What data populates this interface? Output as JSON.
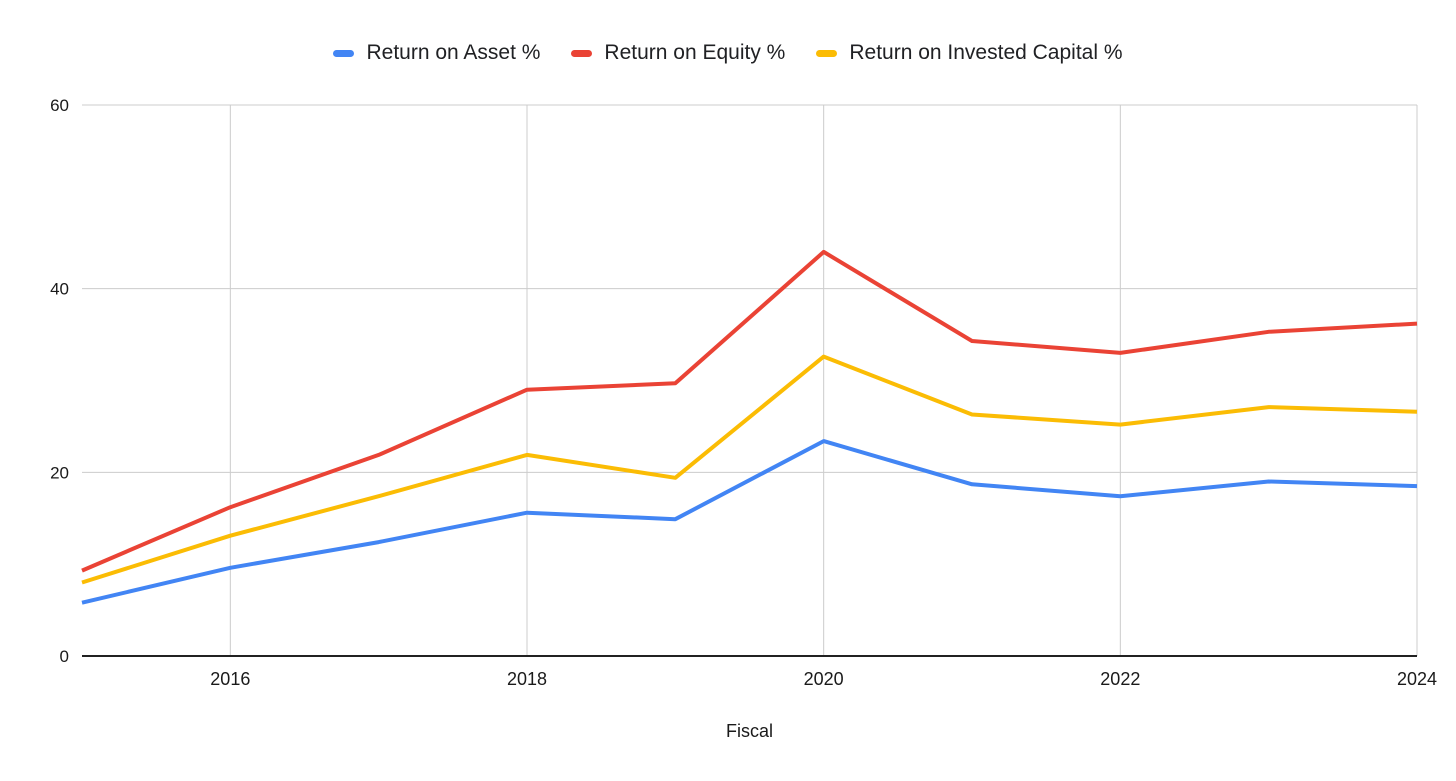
{
  "chart_data": {
    "type": "line",
    "title": "",
    "xlabel": "Fiscal",
    "ylabel": "",
    "x": [
      2015,
      2016,
      2017,
      2018,
      2019,
      2020,
      2021,
      2022,
      2023,
      2024
    ],
    "xlim": [
      2015,
      2024
    ],
    "ylim": [
      0,
      60
    ],
    "y_ticks": [
      0,
      20,
      40,
      60
    ],
    "x_ticks": [
      2016,
      2018,
      2020,
      2022,
      2024
    ],
    "grid": true,
    "legend_position": "top",
    "series": [
      {
        "name": "Return on Asset %",
        "color": "#4285F4",
        "values": [
          5.8,
          9.6,
          12.4,
          15.6,
          14.9,
          23.4,
          18.7,
          17.4,
          19.0,
          18.5
        ]
      },
      {
        "name": "Return on Equity %",
        "color": "#EA4335",
        "values": [
          9.3,
          16.2,
          21.9,
          29.0,
          29.7,
          44.0,
          34.3,
          33.0,
          35.3,
          36.2
        ]
      },
      {
        "name": "Return on Invested Capital %",
        "color": "#FBBC04",
        "values": [
          8.0,
          13.1,
          17.4,
          21.9,
          19.4,
          32.6,
          26.3,
          25.2,
          27.1,
          26.6
        ]
      }
    ],
    "style": {
      "gridline_color": "#cccccc",
      "axis_line_color": "#212121",
      "tick_label_color": "#1a1a1a",
      "background": "#ffffff"
    }
  }
}
